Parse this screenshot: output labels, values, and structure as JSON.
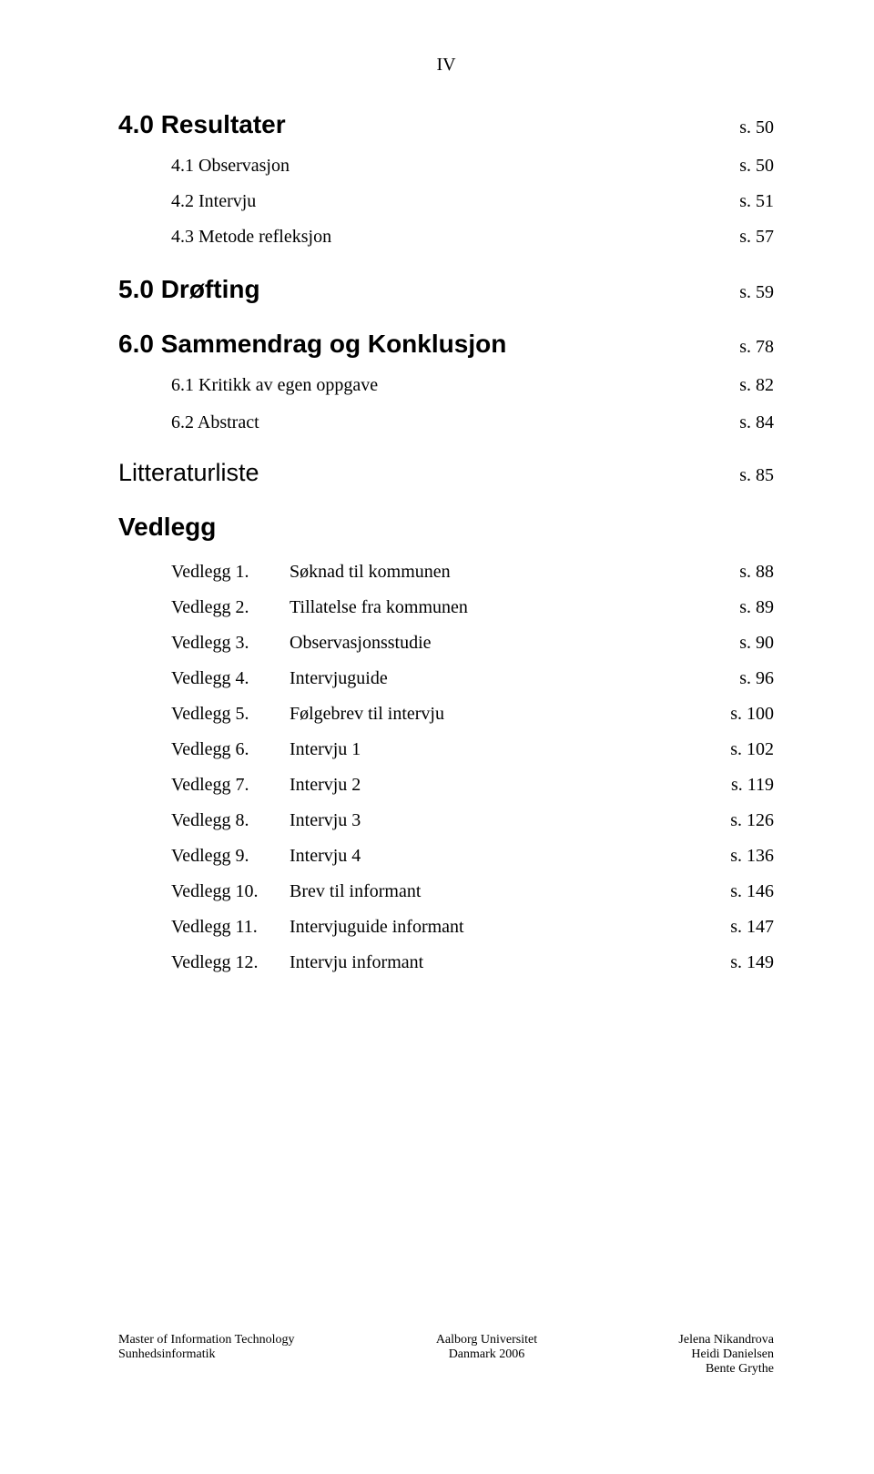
{
  "page_roman": "IV",
  "sections": {
    "resultater": {
      "title": "4.0 Resultater",
      "page": "s. 50",
      "items": [
        {
          "label": "4.1 Observasjon",
          "page": "s. 50"
        },
        {
          "label": "4.2 Intervju",
          "page": "s. 51"
        },
        {
          "label": "4.3 Metode refleksjon",
          "page": "s. 57"
        }
      ]
    },
    "drofting": {
      "title": "5.0 Drøfting",
      "page": "s. 59"
    },
    "sammendrag": {
      "title": "6.0 Sammendrag og Konklusjon",
      "page": "s. 78",
      "items": [
        {
          "label": "6.1 Kritikk av egen oppgave",
          "page": "s. 82"
        },
        {
          "label": "6.2 Abstract",
          "page": "s. 84"
        }
      ]
    },
    "litteraturliste": {
      "title": "Litteraturliste",
      "page": "s. 85"
    },
    "vedlegg": {
      "title": "Vedlegg",
      "items": [
        {
          "num": "Vedlegg 1.",
          "desc": "Søknad til kommunen",
          "page": "s. 88"
        },
        {
          "num": "Vedlegg 2.",
          "desc": "Tillatelse fra kommunen",
          "page": "s. 89"
        },
        {
          "num": "Vedlegg 3.",
          "desc": "Observasjonsstudie",
          "page": "s. 90"
        },
        {
          "num": "Vedlegg 4.",
          "desc": "Intervjuguide",
          "page": "s. 96"
        },
        {
          "num": "Vedlegg 5.",
          "desc": "Følgebrev til intervju",
          "page": "s. 100"
        },
        {
          "num": "Vedlegg 6.",
          "desc": "Intervju 1",
          "page": "s. 102"
        },
        {
          "num": "Vedlegg 7.",
          "desc": "Intervju 2",
          "page": "s. 119"
        },
        {
          "num": "Vedlegg 8.",
          "desc": "Intervju 3",
          "page": "s. 126"
        },
        {
          "num": "Vedlegg 9.",
          "desc": "Intervju 4",
          "page": "s. 136"
        },
        {
          "num": "Vedlegg 10.",
          "desc": "Brev til informant",
          "page": "s. 146"
        },
        {
          "num": "Vedlegg 11.",
          "desc": "Intervjuguide informant",
          "page": "s. 147"
        },
        {
          "num": "Vedlegg 12.",
          "desc": "Intervju informant",
          "page": "s. 149"
        }
      ]
    }
  },
  "footer": {
    "left": [
      "Master of Information Technology",
      "Sunhedsinformatik"
    ],
    "center": [
      "Aalborg Universitet",
      "Danmark 2006"
    ],
    "right": [
      "Jelena Nikandrova",
      "Heidi Danielsen",
      "Bente Grythe"
    ]
  }
}
